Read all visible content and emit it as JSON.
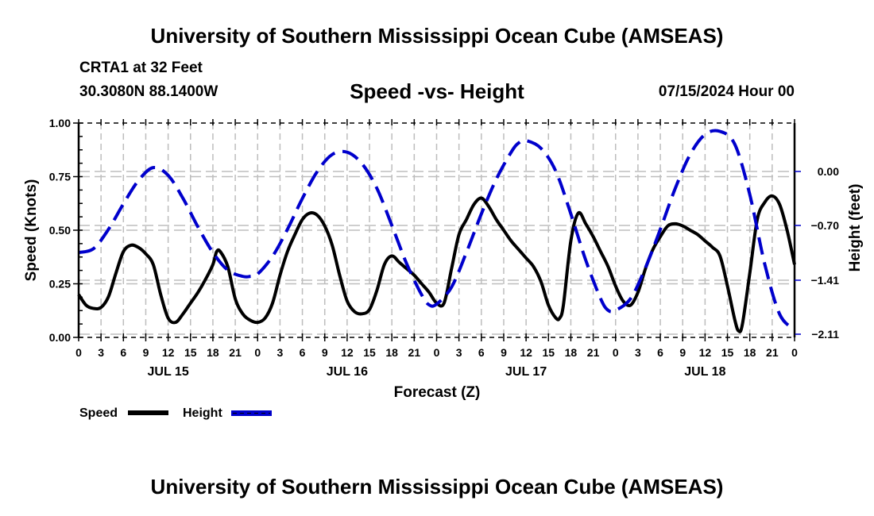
{
  "header": {
    "main_title": "University of Southern Mississippi Ocean Cube (AMSEAS)",
    "station": "CRTA1 at 32 Feet",
    "coords": "30.3080N  88.1400W",
    "chart_title": "Speed -vs- Height",
    "date": "07/15/2024 Hour 00"
  },
  "footer": {
    "bottom_title": "University of Southern Mississippi Ocean Cube (AMSEAS)"
  },
  "chart_data": {
    "type": "line",
    "title": "Speed -vs- Height",
    "xlabel": "Forecast (Z)",
    "ylabel": "Speed (Knots)",
    "y2label": "Height (feet)",
    "xlim_hours": [
      0,
      96
    ],
    "ylim": [
      0,
      1.0
    ],
    "y2lim": [
      -2.11,
      0.6
    ],
    "grid": true,
    "x_tick_labels": [
      "0",
      "3",
      "6",
      "9",
      "12",
      "15",
      "18",
      "21",
      "0",
      "3",
      "6",
      "9",
      "12",
      "15",
      "18",
      "21",
      "0",
      "3",
      "6",
      "9",
      "12",
      "15",
      "18",
      "21",
      "0",
      "3",
      "6",
      "9",
      "12",
      "15",
      "18",
      "21",
      "0"
    ],
    "day_labels": [
      {
        "label": "JUL 15",
        "hour": 12
      },
      {
        "label": "JUL 16",
        "hour": 36
      },
      {
        "label": "JUL 17",
        "hour": 60
      },
      {
        "label": "JUL 18",
        "hour": 84
      }
    ],
    "y_ticks": [
      "0.00",
      "0.25",
      "0.50",
      "0.75",
      "1.00"
    ],
    "y2_ticks": [
      {
        "label": "0.00",
        "value": 0.0
      },
      {
        "label": "−0.70",
        "value": -0.7
      },
      {
        "label": "−1.41",
        "value": -1.41
      },
      {
        "label": "−2.11",
        "value": -2.11
      }
    ],
    "legend": [
      {
        "name": "Speed",
        "color": "#000000",
        "style": "solid"
      },
      {
        "name": "Height",
        "color": "#0000cc",
        "style": "dashed"
      }
    ],
    "legend_position": "bottom-left",
    "series": [
      {
        "name": "Speed",
        "axis": "left",
        "color": "#000000",
        "hours": [
          0,
          1,
          2,
          3,
          4,
          5,
          6,
          7,
          8,
          9,
          10,
          11,
          12,
          13,
          14,
          15,
          16,
          17,
          18,
          18.5,
          19,
          20,
          21,
          22,
          23,
          24,
          25,
          26,
          27,
          28,
          29,
          30,
          31,
          32,
          33,
          34,
          35,
          36,
          37,
          38,
          39,
          40,
          41,
          42,
          43,
          44,
          45,
          46,
          47,
          48,
          49,
          50,
          51,
          52,
          53,
          54,
          55,
          56,
          57,
          58,
          59,
          60,
          61,
          62,
          63,
          64,
          64.5,
          65,
          66,
          67,
          68,
          69,
          70,
          71,
          72,
          73,
          74,
          75,
          76,
          77,
          78,
          79,
          80,
          81,
          82,
          83,
          84,
          85,
          86,
          87,
          88,
          88.5,
          89,
          90,
          91,
          92,
          93,
          94,
          95,
          96
        ],
        "values": [
          0.2,
          0.15,
          0.135,
          0.14,
          0.19,
          0.3,
          0.4,
          0.43,
          0.42,
          0.39,
          0.34,
          0.2,
          0.09,
          0.07,
          0.11,
          0.16,
          0.21,
          0.27,
          0.34,
          0.4,
          0.4,
          0.33,
          0.18,
          0.11,
          0.08,
          0.07,
          0.09,
          0.16,
          0.29,
          0.4,
          0.48,
          0.55,
          0.58,
          0.57,
          0.52,
          0.43,
          0.29,
          0.17,
          0.12,
          0.11,
          0.13,
          0.22,
          0.34,
          0.38,
          0.35,
          0.32,
          0.29,
          0.25,
          0.21,
          0.16,
          0.16,
          0.32,
          0.48,
          0.55,
          0.62,
          0.65,
          0.61,
          0.55,
          0.5,
          0.45,
          0.41,
          0.37,
          0.33,
          0.26,
          0.15,
          0.09,
          0.09,
          0.15,
          0.45,
          0.58,
          0.53,
          0.47,
          0.4,
          0.33,
          0.24,
          0.17,
          0.15,
          0.21,
          0.32,
          0.41,
          0.47,
          0.52,
          0.53,
          0.52,
          0.5,
          0.48,
          0.45,
          0.42,
          0.38,
          0.24,
          0.08,
          0.03,
          0.06,
          0.3,
          0.55,
          0.63,
          0.66,
          0.62,
          0.5,
          0.34,
          0.18,
          0.07
        ]
      },
      {
        "name": "Height",
        "axis": "right",
        "color": "#0000cc",
        "hours": [
          0,
          2,
          4,
          6,
          8,
          10,
          12,
          14,
          16,
          18,
          20,
          22,
          23,
          24,
          26,
          28,
          30,
          32,
          34,
          36,
          38,
          40,
          42,
          44,
          46,
          47,
          48,
          50,
          52,
          54,
          56,
          58,
          59,
          60,
          62,
          64,
          66,
          68,
          70,
          71,
          72,
          74,
          76,
          78,
          80,
          82,
          84,
          86,
          88,
          90,
          92,
          94,
          96
        ],
        "values": [
          -1.05,
          -1.0,
          -0.75,
          -0.42,
          -0.12,
          0.05,
          -0.05,
          -0.35,
          -0.72,
          -1.05,
          -1.28,
          -1.36,
          -1.36,
          -1.33,
          -1.1,
          -0.75,
          -0.35,
          0.0,
          0.22,
          0.25,
          0.1,
          -0.22,
          -0.7,
          -1.2,
          -1.6,
          -1.73,
          -1.72,
          -1.5,
          -1.05,
          -0.55,
          -0.1,
          0.25,
          0.37,
          0.4,
          0.3,
          0.0,
          -0.55,
          -1.15,
          -1.65,
          -1.8,
          -1.8,
          -1.65,
          -1.25,
          -0.75,
          -0.22,
          0.22,
          0.48,
          0.52,
          0.35,
          -0.3,
          -1.2,
          -1.85,
          -2.05
        ]
      }
    ]
  }
}
